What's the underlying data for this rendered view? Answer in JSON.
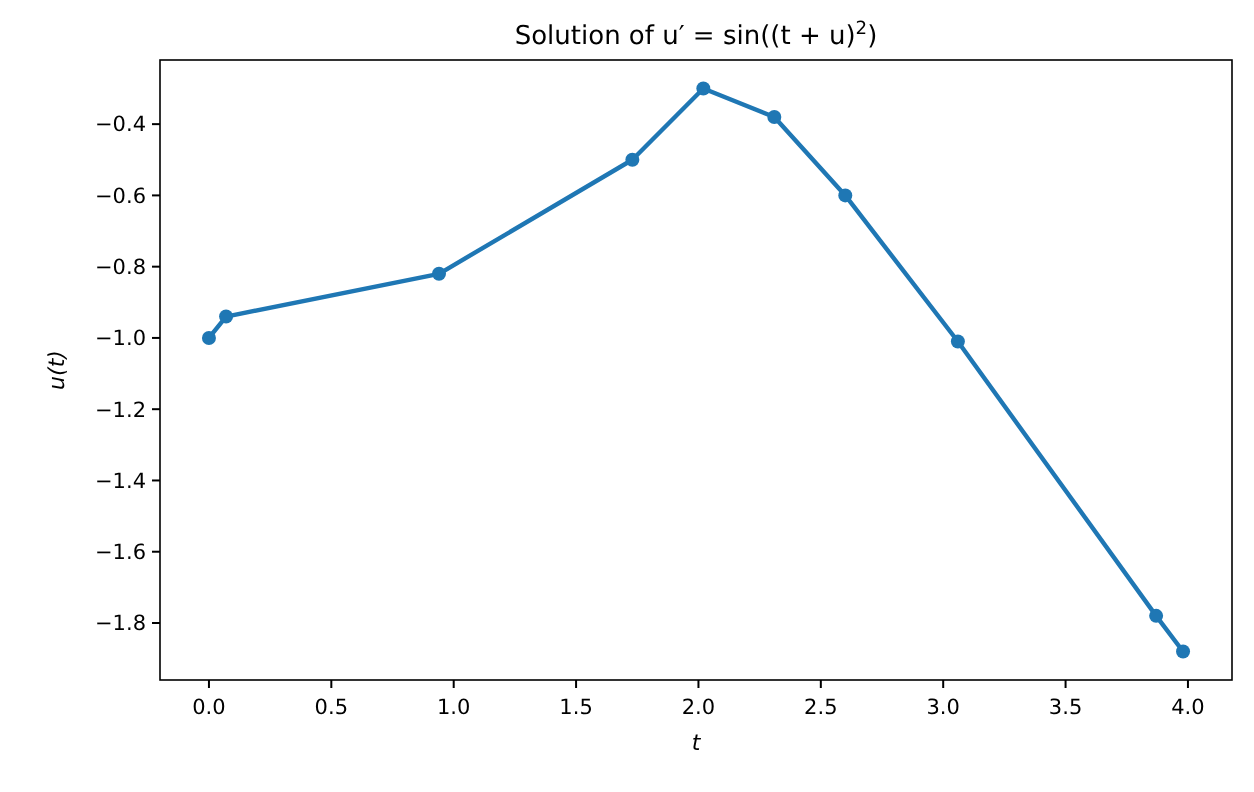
{
  "chart_data": {
    "type": "line",
    "title": "Solution of u′ = sin((t + u)$^{2}$)",
    "xlabel": "t",
    "ylabel": "u(t)",
    "x": [
      0,
      0.07,
      0.94,
      1.73,
      2.02,
      2.31,
      2.6,
      3.06,
      3.87,
      3.98
    ],
    "series": [
      {
        "color": "#1f77b4",
        "values": [
          -1.0,
          -0.94,
          -0.82,
          -0.5,
          -0.3,
          -0.38,
          -0.6,
          -1.01,
          -1.78,
          -1.88
        ]
      }
    ],
    "xlim": [
      -0.2,
      4.18
    ],
    "ylim": [
      -1.96,
      -0.22
    ],
    "xticks": [
      {
        "value": 0,
        "label": "0.0"
      },
      {
        "value": 0.5,
        "label": "0.5"
      },
      {
        "value": 1,
        "label": "1.0"
      },
      {
        "value": 1.5,
        "label": "1.5"
      },
      {
        "value": 2,
        "label": "2.0"
      },
      {
        "value": 2.5,
        "label": "2.5"
      },
      {
        "value": 3,
        "label": "3.0"
      },
      {
        "value": 3.5,
        "label": "3.5"
      },
      {
        "value": 4,
        "label": "4.0"
      }
    ],
    "yticks": [
      {
        "value": -1.8,
        "label": "−1.8"
      },
      {
        "value": -1.6,
        "label": "−1.6"
      },
      {
        "value": -1.4,
        "label": "−1.4"
      },
      {
        "value": -1.2,
        "label": "−1.2"
      },
      {
        "value": -1.0,
        "label": "−1.0"
      },
      {
        "value": -0.8,
        "label": "−0.8"
      },
      {
        "value": -0.6,
        "label": "−0.6"
      },
      {
        "value": -0.4,
        "label": "−0.4"
      }
    ],
    "marker": "circle",
    "line_style": "solid",
    "grid": false
  }
}
